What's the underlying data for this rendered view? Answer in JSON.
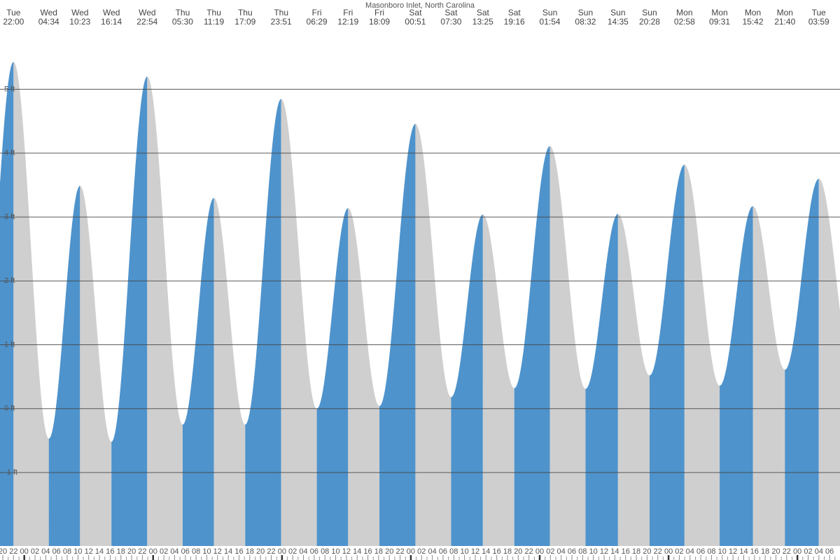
{
  "chart_data": {
    "type": "tide",
    "title": "Masonboro Inlet, North Carolina",
    "rising_color": "#4f93cd",
    "falling_color": "#cfcfcf",
    "grid": true,
    "ylim": [
      -2.15,
      5.85
    ],
    "yticks": [
      {
        "value": -1,
        "label": "-1 ft"
      },
      {
        "value": 0,
        "label": "0 ft"
      },
      {
        "value": 1,
        "label": "1 ft"
      },
      {
        "value": 2,
        "label": "2 ft"
      },
      {
        "value": 3,
        "label": "3 ft"
      },
      {
        "value": 4,
        "label": "4 ft"
      },
      {
        "value": 5,
        "label": "5 ft"
      }
    ],
    "extrema": [
      {
        "day": "Tue",
        "time": "22:00",
        "height": 5.43
      },
      {
        "day": "Wed",
        "time": "04:34",
        "height": -0.47
      },
      {
        "day": "Wed",
        "time": "10:23",
        "height": 3.49
      },
      {
        "day": "Wed",
        "time": "16:14",
        "height": -0.52
      },
      {
        "day": "Wed",
        "time": "22:54",
        "height": 5.2
      },
      {
        "day": "Thu",
        "time": "05:30",
        "height": -0.25
      },
      {
        "day": "Thu",
        "time": "11:19",
        "height": 3.3
      },
      {
        "day": "Thu",
        "time": "17:09",
        "height": -0.25
      },
      {
        "day": "Thu",
        "time": "23:51",
        "height": 4.85
      },
      {
        "day": "Fri",
        "time": "06:29",
        "height": 0.0
      },
      {
        "day": "Fri",
        "time": "12:19",
        "height": 3.14
      },
      {
        "day": "Fri",
        "time": "18:09",
        "height": 0.04
      },
      {
        "day": "Sat",
        "time": "00:51",
        "height": 4.46
      },
      {
        "day": "Sat",
        "time": "07:30",
        "height": 0.18
      },
      {
        "day": "Sat",
        "time": "13:25",
        "height": 3.04
      },
      {
        "day": "Sat",
        "time": "19:16",
        "height": 0.32
      },
      {
        "day": "Sun",
        "time": "01:54",
        "height": 4.11
      },
      {
        "day": "Sun",
        "time": "08:32",
        "height": 0.31
      },
      {
        "day": "Sun",
        "time": "14:35",
        "height": 3.05
      },
      {
        "day": "Sun",
        "time": "20:28",
        "height": 0.52
      },
      {
        "day": "Mon",
        "time": "02:58",
        "height": 3.82
      },
      {
        "day": "Mon",
        "time": "09:31",
        "height": 0.36
      },
      {
        "day": "Mon",
        "time": "15:42",
        "height": 3.17
      },
      {
        "day": "Mon",
        "time": "21:40",
        "height": 0.61
      },
      {
        "day": "Tue",
        "time": "03:59",
        "height": 3.6
      }
    ],
    "hour_labels": [
      "20",
      "22",
      "00",
      "02",
      "04",
      "06",
      "08",
      "10",
      "12",
      "14",
      "16",
      "18",
      "20",
      "22",
      "00",
      "02",
      "04",
      "06",
      "08",
      "10",
      "12",
      "14",
      "16",
      "18",
      "20",
      "22",
      "00",
      "02",
      "04",
      "06",
      "08",
      "10",
      "12",
      "14",
      "16",
      "18",
      "20",
      "22",
      "00",
      "02",
      "04",
      "06",
      "08",
      "10",
      "12",
      "14",
      "16",
      "18",
      "20",
      "22",
      "00",
      "02",
      "04",
      "06",
      "08",
      "10",
      "12",
      "14",
      "16",
      "18",
      "20",
      "22",
      "00",
      "02",
      "04",
      "06",
      "08",
      "10",
      "12",
      "14",
      "16",
      "18",
      "20",
      "22",
      "00",
      "02",
      "04",
      "06"
    ]
  }
}
